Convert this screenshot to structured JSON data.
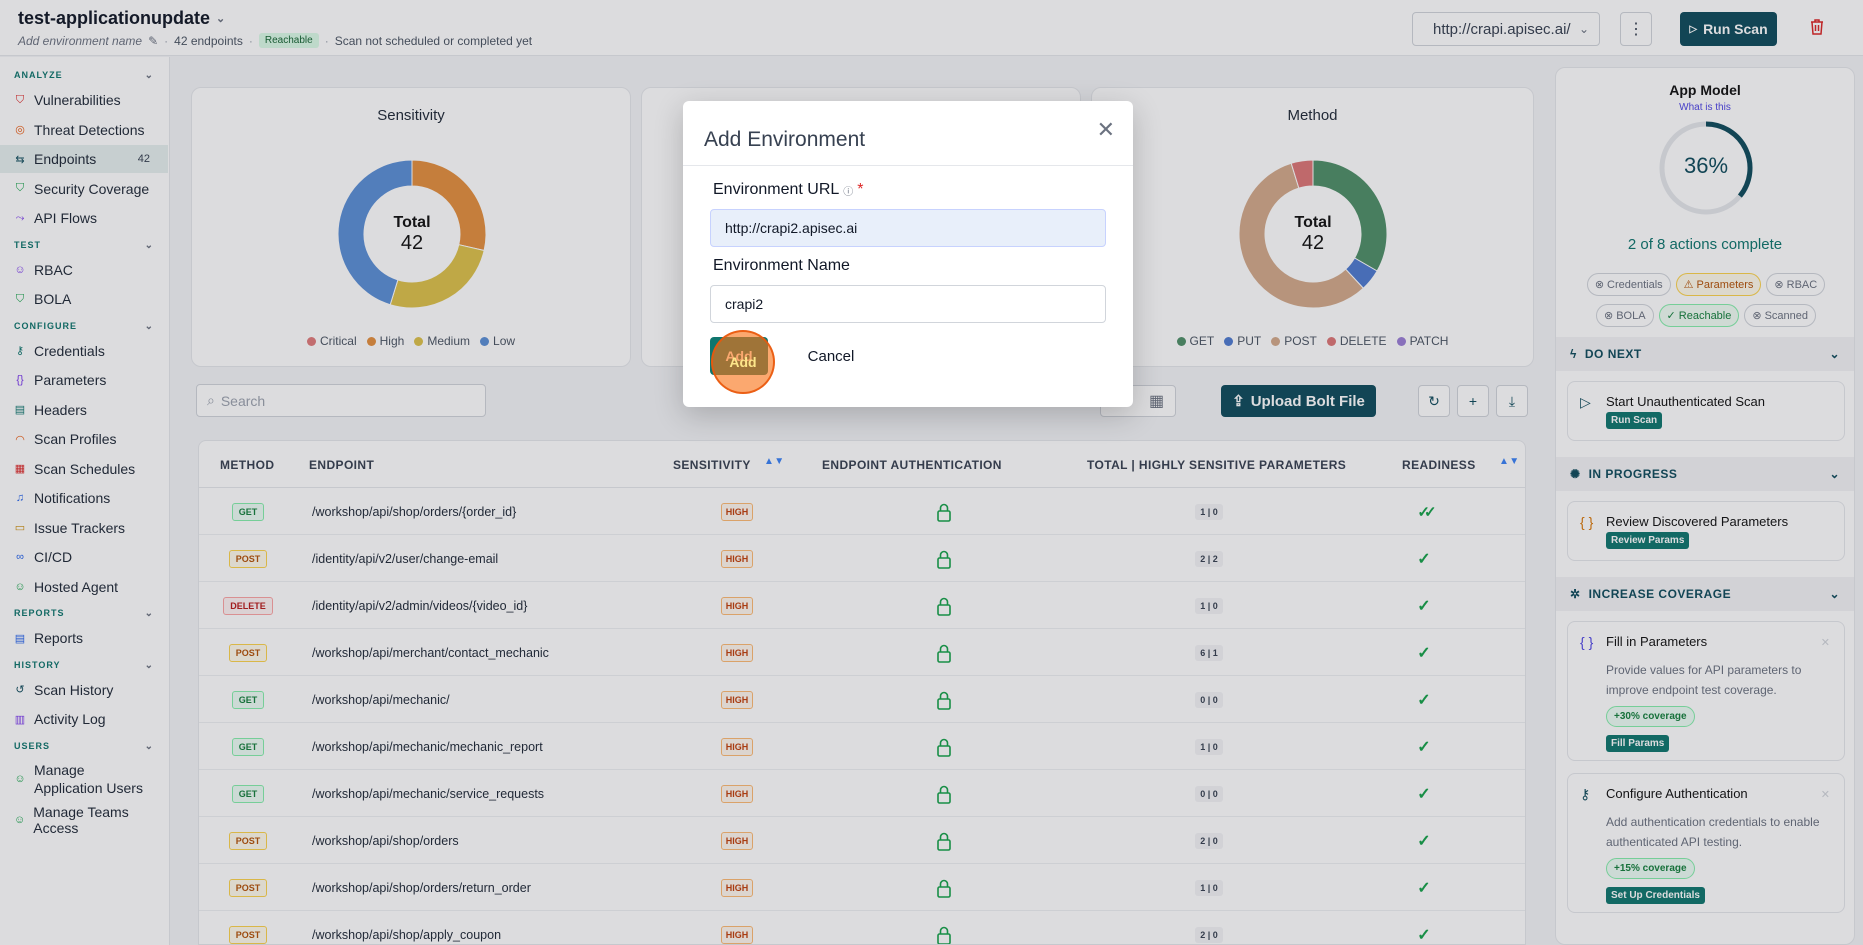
{
  "header": {
    "app_name": "test-applicationupdate",
    "env_name_placeholder": "Add environment name",
    "endpoint_count": "42 endpoints",
    "reachable_badge": "Reachable",
    "scan_status": "Scan not scheduled or completed yet",
    "env_url": "http://crapi.apisec.ai/",
    "run_scan": "Run Scan"
  },
  "sidebar": {
    "sections": [
      {
        "title": "ANALYZE",
        "items": [
          {
            "label": "Vulnerabilities",
            "icon": "shield-alert-icon"
          },
          {
            "label": "Threat Detections",
            "icon": "radar-icon"
          },
          {
            "label": "Endpoints",
            "icon": "endpoints-icon",
            "count": "42",
            "active": true
          },
          {
            "label": "Security Coverage",
            "icon": "shield-icon"
          },
          {
            "label": "API Flows",
            "icon": "flow-icon"
          }
        ]
      },
      {
        "title": "TEST",
        "items": [
          {
            "label": "RBAC",
            "icon": "users-icon"
          },
          {
            "label": "BOLA",
            "icon": "shield-check-icon"
          }
        ]
      },
      {
        "title": "CONFIGURE",
        "items": [
          {
            "label": "Credentials",
            "icon": "key-icon"
          },
          {
            "label": "Parameters",
            "icon": "braces-icon"
          },
          {
            "label": "Headers",
            "icon": "headers-icon"
          },
          {
            "label": "Scan Profiles",
            "icon": "gauge-icon"
          },
          {
            "label": "Scan Schedules",
            "icon": "calendar-icon"
          },
          {
            "label": "Notifications",
            "icon": "bell-icon"
          },
          {
            "label": "Issue Trackers",
            "icon": "ticket-icon"
          },
          {
            "label": "CI/CD",
            "icon": "pipeline-icon"
          },
          {
            "label": "Hosted Agent",
            "icon": "agent-icon"
          }
        ]
      },
      {
        "title": "REPORTS",
        "items": [
          {
            "label": "Reports",
            "icon": "report-icon"
          }
        ]
      },
      {
        "title": "HISTORY",
        "items": [
          {
            "label": "Scan History",
            "icon": "history-icon"
          },
          {
            "label": "Activity Log",
            "icon": "log-icon"
          }
        ]
      },
      {
        "title": "USERS",
        "items": [
          {
            "label": "Manage Application Users",
            "icon": "user-icon"
          },
          {
            "label": "Manage Teams Access",
            "icon": "team-icon"
          }
        ]
      }
    ]
  },
  "charts": {
    "sensitivity_title": "Sensitivity",
    "method_title": "Method",
    "center_label": "Total",
    "center_value": "42"
  },
  "chart_data": [
    {
      "type": "pie",
      "title": "Sensitivity",
      "categories": [
        "Critical",
        "High",
        "Medium",
        "Low"
      ],
      "values": [
        0,
        12,
        11,
        19
      ],
      "colors": [
        "#e07b7b",
        "#e4903f",
        "#ddc24a",
        "#5b8fd6"
      ]
    },
    {
      "type": "pie",
      "title": "Method",
      "categories": [
        "GET",
        "PUT",
        "POST",
        "DELETE",
        "PATCH"
      ],
      "values": [
        14,
        2,
        24,
        2,
        0
      ],
      "colors": [
        "#4f8f68",
        "#4f7bd0",
        "#d3aa8b",
        "#dd7777",
        "#9b7fd6"
      ]
    }
  ],
  "toolbar": {
    "search_placeholder": "Search",
    "upload_label": "Upload Bolt File"
  },
  "table": {
    "headers": {
      "method": "METHOD",
      "endpoint": "ENDPOINT",
      "sensitivity": "SENSITIVITY",
      "auth": "ENDPOINT AUTHENTICATION",
      "params": "TOTAL | HIGHLY SENSITIVE PARAMETERS",
      "readiness": "READINESS"
    },
    "rows": [
      {
        "method": "GET",
        "endpoint": "/workshop/api/shop/orders/{order_id}",
        "sensitivity": "HIGH",
        "params": "1 | 0",
        "readiness": "double"
      },
      {
        "method": "POST",
        "endpoint": "/identity/api/v2/user/change-email",
        "sensitivity": "HIGH",
        "params": "2 | 2",
        "readiness": "single"
      },
      {
        "method": "DELETE",
        "endpoint": "/identity/api/v2/admin/videos/{video_id}",
        "sensitivity": "HIGH",
        "params": "1 | 0",
        "readiness": "single"
      },
      {
        "method": "POST",
        "endpoint": "/workshop/api/merchant/contact_mechanic",
        "sensitivity": "HIGH",
        "params": "6 | 1",
        "readiness": "single"
      },
      {
        "method": "GET",
        "endpoint": "/workshop/api/mechanic/",
        "sensitivity": "HIGH",
        "params": "0 | 0",
        "readiness": "single"
      },
      {
        "method": "GET",
        "endpoint": "/workshop/api/mechanic/mechanic_report",
        "sensitivity": "HIGH",
        "params": "1 | 0",
        "readiness": "single"
      },
      {
        "method": "GET",
        "endpoint": "/workshop/api/mechanic/service_requests",
        "sensitivity": "HIGH",
        "params": "0 | 0",
        "readiness": "single"
      },
      {
        "method": "POST",
        "endpoint": "/workshop/api/shop/orders",
        "sensitivity": "HIGH",
        "params": "2 | 0",
        "readiness": "single"
      },
      {
        "method": "POST",
        "endpoint": "/workshop/api/shop/orders/return_order",
        "sensitivity": "HIGH",
        "params": "1 | 0",
        "readiness": "single"
      },
      {
        "method": "POST",
        "endpoint": "/workshop/api/shop/apply_coupon",
        "sensitivity": "HIGH",
        "params": "2 | 0",
        "readiness": "single"
      }
    ]
  },
  "right_panel": {
    "title": "App Model",
    "link": "What is this",
    "percent": "36%",
    "progress_fraction": 0.36,
    "progress_text": "2 of 8 actions complete",
    "chips_row1": [
      {
        "label": "Credentials",
        "state": "todo"
      },
      {
        "label": "Parameters",
        "state": "warn"
      },
      {
        "label": "RBAC",
        "state": "todo"
      }
    ],
    "chips_row2": [
      {
        "label": "BOLA",
        "state": "todo"
      },
      {
        "label": "Reachable",
        "state": "ok"
      },
      {
        "label": "Scanned",
        "state": "todo"
      }
    ],
    "do_next": "DO NEXT",
    "in_progress": "IN PROGRESS",
    "increase_coverage": "INCREASE COVERAGE",
    "task1": {
      "title": "Start Unauthenticated Scan",
      "button": "Run Scan"
    },
    "task2": {
      "title": "Review Discovered Parameters",
      "button": "Review Params"
    },
    "task3": {
      "title": "Fill in Parameters",
      "desc": "Provide values for API parameters to improve endpoint test coverage.",
      "coverage": "+30% coverage",
      "button": "Fill Params"
    },
    "task4": {
      "title": "Configure Authentication",
      "desc": "Add authentication credentials to enable authenticated API testing.",
      "coverage": "+15% coverage",
      "button": "Set Up Credentials"
    }
  },
  "modal": {
    "title": "Add Environment",
    "url_label": "Environment URL",
    "url_required": "*",
    "url_value": "http://crapi2.apisec.ai",
    "name_label": "Environment Name",
    "name_value": "crapi2",
    "add_label": "Add",
    "cancel_label": "Cancel"
  }
}
